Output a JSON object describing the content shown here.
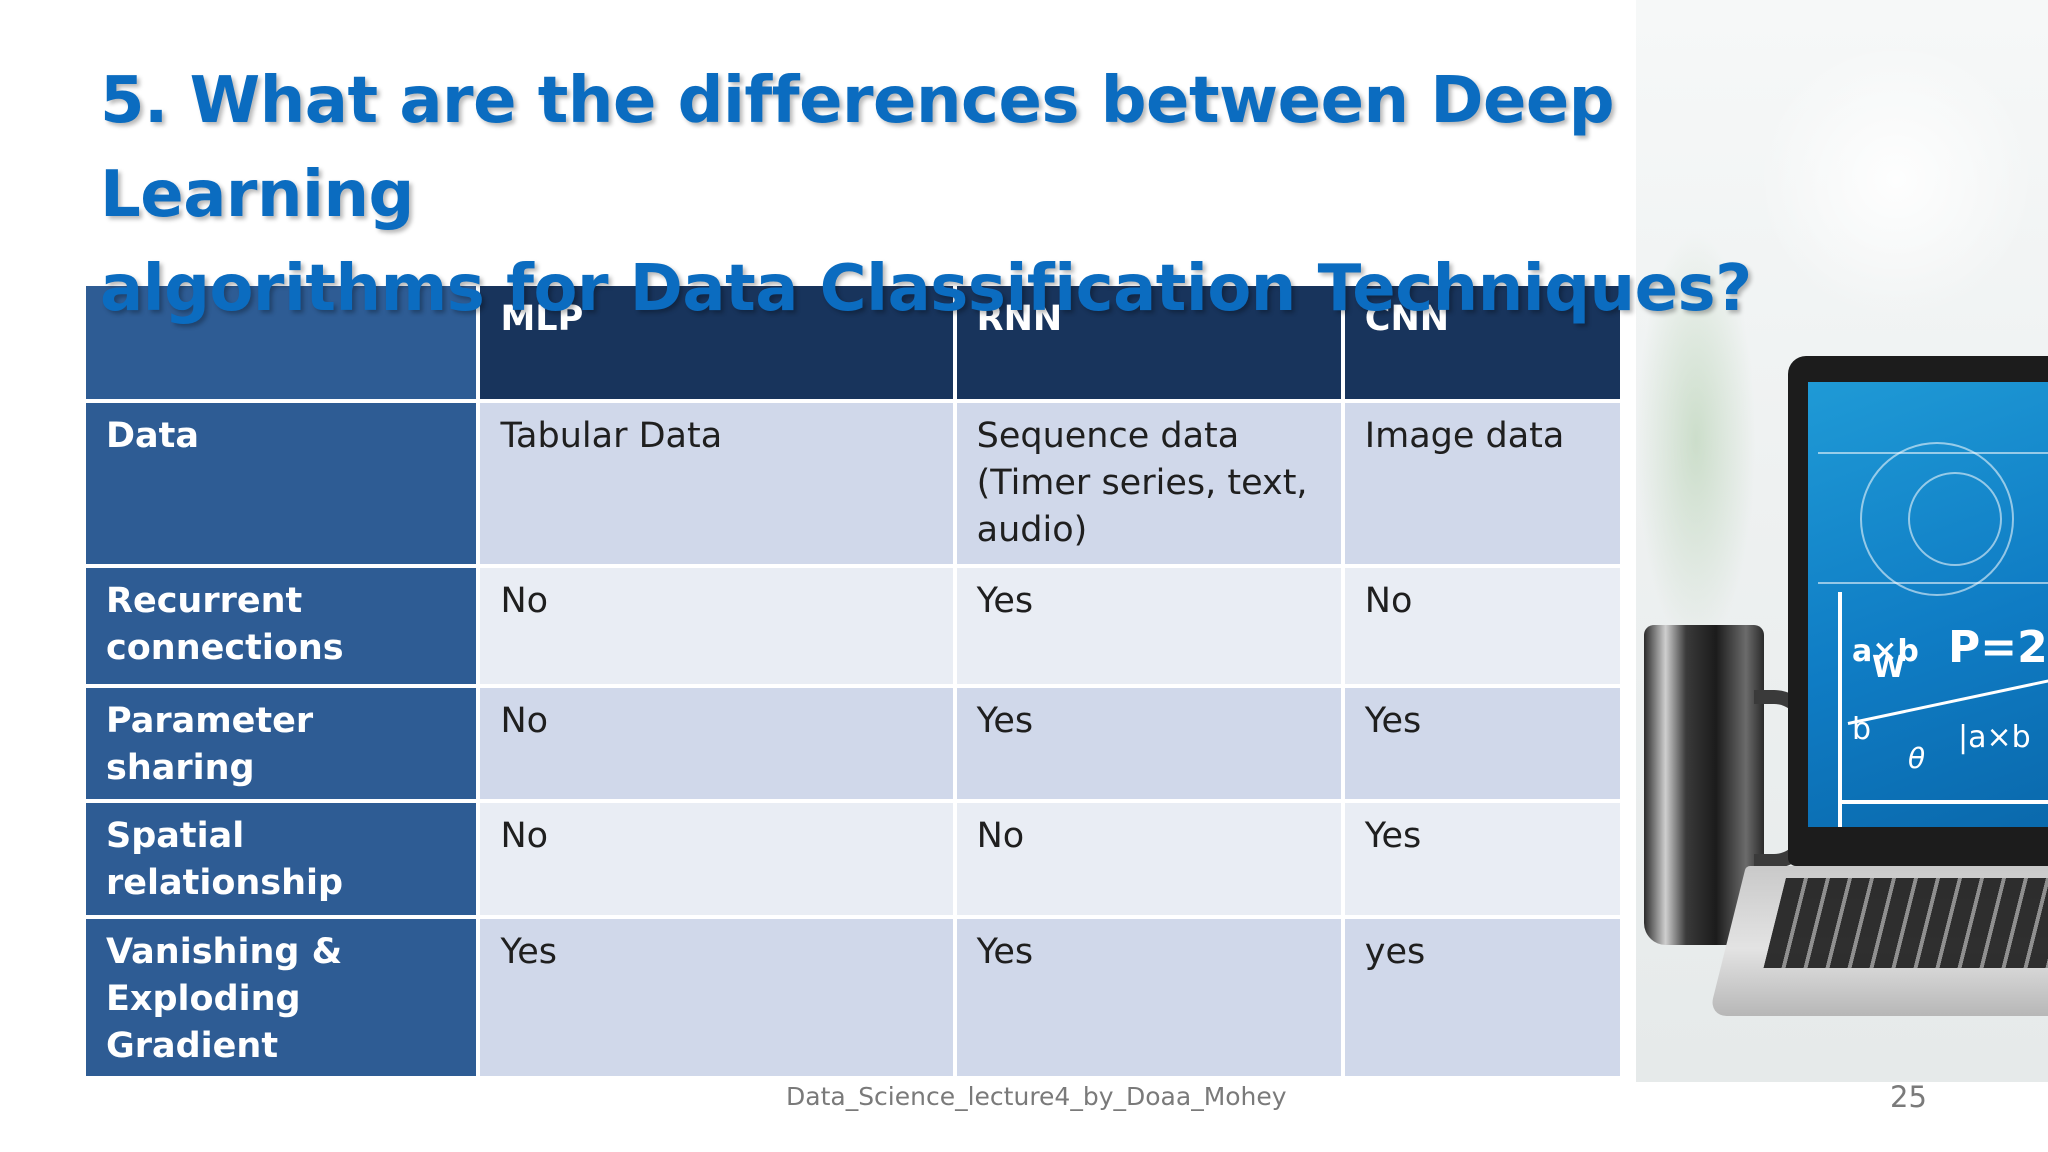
{
  "slide": {
    "title_line1": "5. What are the differences between Deep Learning",
    "title_line2": "algorithms for Data Classification Techniques?",
    "footer": "Data_Science_lecture4_by_Doaa_Mohey",
    "page_number": "25"
  },
  "table": {
    "headers": [
      "",
      "MLP",
      "RNN",
      "CNN"
    ],
    "rows": [
      {
        "label": "Data",
        "mlp": "Tabular Data",
        "rnn": "Sequence data (Timer series, text, audio)",
        "cnn": "Image data"
      },
      {
        "label": "Recurrent connections",
        "mlp": "No",
        "rnn": "Yes",
        "cnn": "No"
      },
      {
        "label": "Parameter sharing",
        "mlp": "No",
        "rnn": "Yes",
        "cnn": "Yes"
      },
      {
        "label": "Spatial relationship",
        "mlp": "No",
        "rnn": "No",
        "cnn": "Yes"
      },
      {
        "label": "Vanishing & Exploding Gradient",
        "mlp": "Yes",
        "rnn": "Yes",
        "cnn": "yes"
      }
    ]
  },
  "photo": {
    "screen_formula_1": "P=2",
    "screen_formula_2": "a×b",
    "screen_formula_3": "|a×b",
    "screen_formula_4": "θ",
    "screen_formula_5": "b",
    "screen_formula_6": "W",
    "colors": {
      "screen": "#1289cf",
      "title": "#0b6cc0",
      "header": "#18345c",
      "row_header": "#2e5c94",
      "band_dark": "#d0d8ea",
      "band_light": "#e9edf4"
    }
  }
}
